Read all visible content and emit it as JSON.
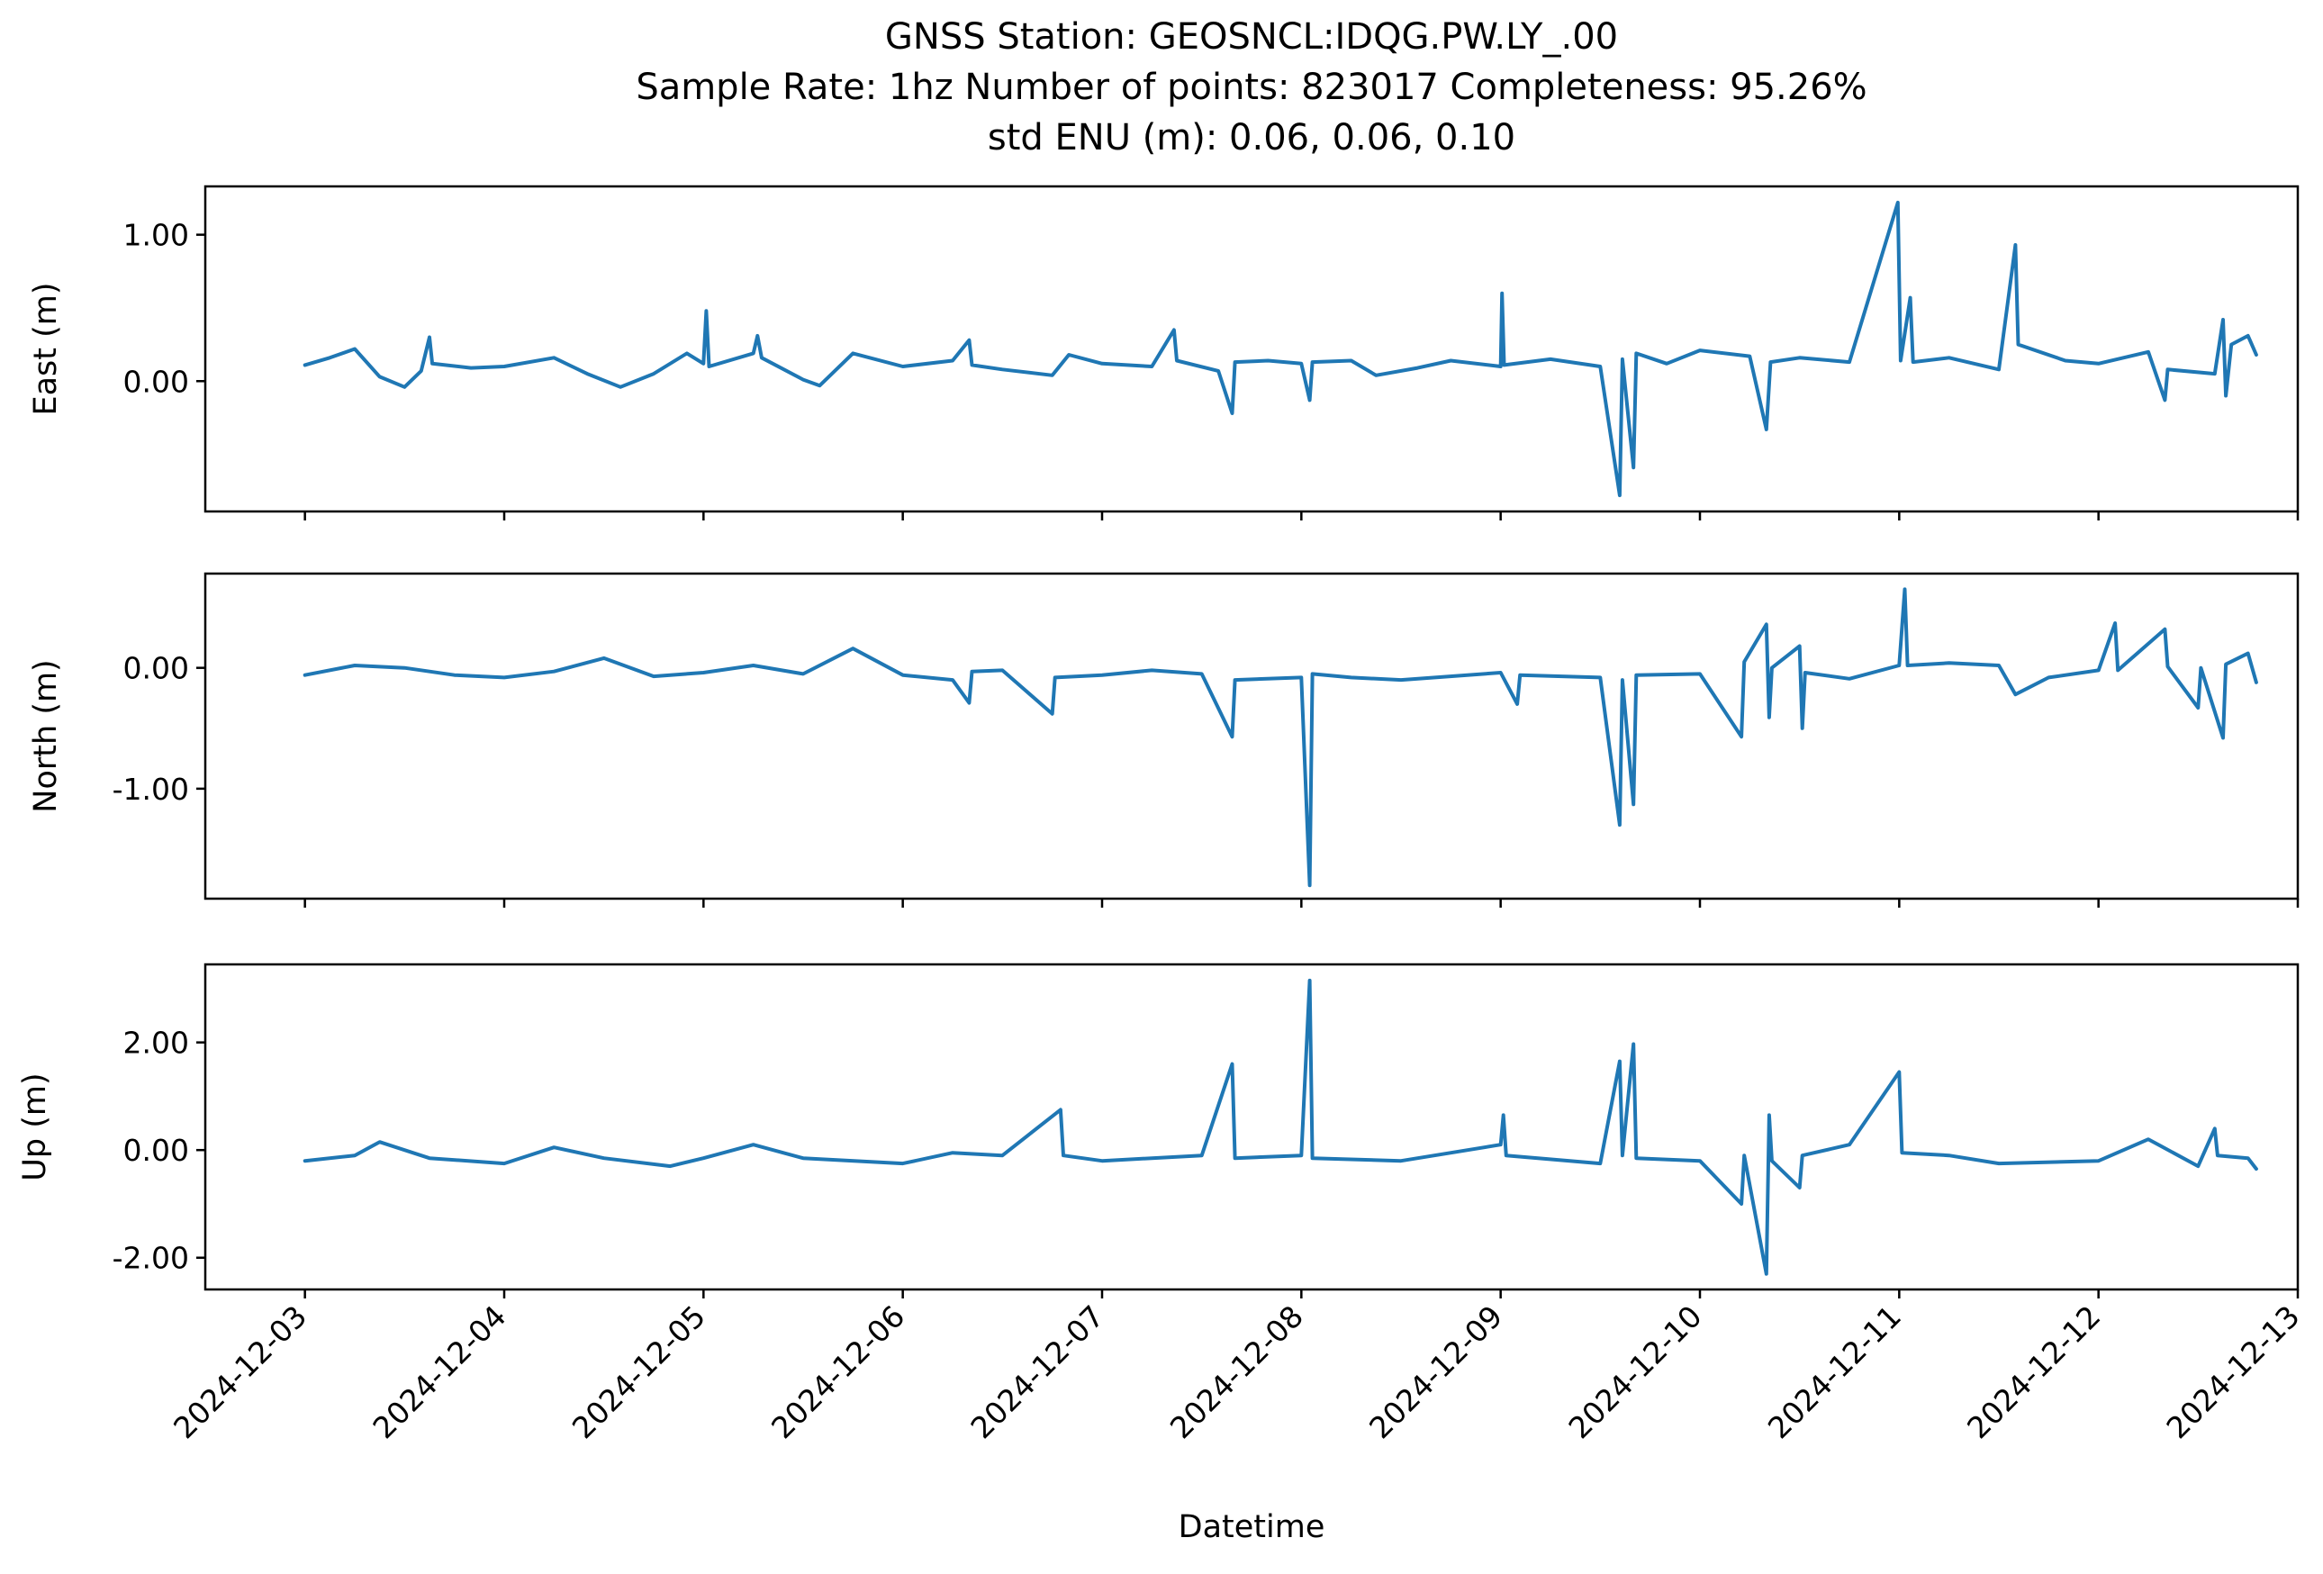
{
  "chart_data": {
    "type": "line",
    "title_lines": [
      "GNSS Station: GEOSNCL:IDQG.PW.LY_.00",
      "Sample Rate: 1hz   Number of points: 823017    Completeness:  95.26%",
      "std ENU (m):  0.06, 0.06, 0.10"
    ],
    "xlabel": "Datetime",
    "x_axis": {
      "type": "datetime",
      "range": [
        "2024-12-02T12:00",
        "2024-12-13T00:00"
      ],
      "ticks": [
        "2024-12-03",
        "2024-12-04",
        "2024-12-05",
        "2024-12-06",
        "2024-12-07",
        "2024-12-08",
        "2024-12-09",
        "2024-12-10",
        "2024-12-11",
        "2024-12-12",
        "2024-12-13"
      ]
    },
    "series_color": "#1f77b4",
    "grid": false,
    "panels": [
      {
        "key": "east",
        "ylabel": "East (m)",
        "ylim": [
          -0.89,
          1.33
        ],
        "yticks": [
          {
            "v": 0.0,
            "label": "0.00"
          },
          {
            "v": 1.0,
            "label": "1.00"
          }
        ],
        "points": [
          [
            "2024-12-03T00:00",
            0.11
          ],
          [
            "2024-12-03T03:00",
            0.16
          ],
          [
            "2024-12-03T06:00",
            0.22
          ],
          [
            "2024-12-03T09:00",
            0.03
          ],
          [
            "2024-12-03T12:00",
            -0.04
          ],
          [
            "2024-12-03T14:00",
            0.07
          ],
          [
            "2024-12-03T15:00",
            0.3
          ],
          [
            "2024-12-03T15:20",
            0.12
          ],
          [
            "2024-12-03T20:00",
            0.09
          ],
          [
            "2024-12-04T00:00",
            0.1
          ],
          [
            "2024-12-04T06:00",
            0.16
          ],
          [
            "2024-12-04T10:00",
            0.05
          ],
          [
            "2024-12-04T14:00",
            -0.04
          ],
          [
            "2024-12-04T18:00",
            0.05
          ],
          [
            "2024-12-04T22:00",
            0.19
          ],
          [
            "2024-12-05T00:00",
            0.12
          ],
          [
            "2024-12-05T00:20",
            0.48
          ],
          [
            "2024-12-05T00:40",
            0.1
          ],
          [
            "2024-12-05T06:00",
            0.19
          ],
          [
            "2024-12-05T06:30",
            0.31
          ],
          [
            "2024-12-05T07:00",
            0.16
          ],
          [
            "2024-12-05T12:00",
            0.01
          ],
          [
            "2024-12-05T14:00",
            -0.03
          ],
          [
            "2024-12-05T18:00",
            0.19
          ],
          [
            "2024-12-06T00:00",
            0.1
          ],
          [
            "2024-12-06T06:00",
            0.14
          ],
          [
            "2024-12-06T08:00",
            0.28
          ],
          [
            "2024-12-06T08:20",
            0.11
          ],
          [
            "2024-12-06T12:00",
            0.08
          ],
          [
            "2024-12-06T18:00",
            0.04
          ],
          [
            "2024-12-06T20:00",
            0.18
          ],
          [
            "2024-12-07T00:00",
            0.12
          ],
          [
            "2024-12-07T06:00",
            0.1
          ],
          [
            "2024-12-07T08:40",
            0.35
          ],
          [
            "2024-12-07T09:00",
            0.14
          ],
          [
            "2024-12-07T14:00",
            0.07
          ],
          [
            "2024-12-07T15:40",
            -0.22
          ],
          [
            "2024-12-07T16:00",
            0.13
          ],
          [
            "2024-12-07T20:00",
            0.14
          ],
          [
            "2024-12-08T00:00",
            0.12
          ],
          [
            "2024-12-08T01:00",
            -0.13
          ],
          [
            "2024-12-08T01:20",
            0.13
          ],
          [
            "2024-12-08T06:00",
            0.14
          ],
          [
            "2024-12-08T09:00",
            0.04
          ],
          [
            "2024-12-08T14:00",
            0.09
          ],
          [
            "2024-12-08T18:00",
            0.14
          ],
          [
            "2024-12-09T00:00",
            0.1
          ],
          [
            "2024-12-09T00:10",
            0.6
          ],
          [
            "2024-12-09T00:25",
            0.11
          ],
          [
            "2024-12-09T06:00",
            0.15
          ],
          [
            "2024-12-09T12:00",
            0.1
          ],
          [
            "2024-12-09T14:20",
            -0.78
          ],
          [
            "2024-12-09T14:40",
            0.15
          ],
          [
            "2024-12-09T16:00",
            -0.59
          ],
          [
            "2024-12-09T16:20",
            0.19
          ],
          [
            "2024-12-09T20:00",
            0.12
          ],
          [
            "2024-12-10T00:00",
            0.21
          ],
          [
            "2024-12-10T06:00",
            0.17
          ],
          [
            "2024-12-10T08:00",
            -0.33
          ],
          [
            "2024-12-10T08:30",
            0.13
          ],
          [
            "2024-12-10T12:00",
            0.16
          ],
          [
            "2024-12-10T18:00",
            0.13
          ],
          [
            "2024-12-10T23:50",
            1.22
          ],
          [
            "2024-12-11T00:10",
            0.14
          ],
          [
            "2024-12-11T01:20",
            0.57
          ],
          [
            "2024-12-11T01:40",
            0.13
          ],
          [
            "2024-12-11T06:00",
            0.16
          ],
          [
            "2024-12-11T12:00",
            0.08
          ],
          [
            "2024-12-11T14:00",
            0.93
          ],
          [
            "2024-12-11T14:20",
            0.25
          ],
          [
            "2024-12-11T20:00",
            0.14
          ],
          [
            "2024-12-12T00:00",
            0.12
          ],
          [
            "2024-12-12T06:00",
            0.2
          ],
          [
            "2024-12-12T08:00",
            -0.13
          ],
          [
            "2024-12-12T08:20",
            0.08
          ],
          [
            "2024-12-12T14:00",
            0.05
          ],
          [
            "2024-12-12T15:00",
            0.42
          ],
          [
            "2024-12-12T15:20",
            -0.1
          ],
          [
            "2024-12-12T16:00",
            0.25
          ],
          [
            "2024-12-12T18:00",
            0.31
          ],
          [
            "2024-12-12T19:00",
            0.18
          ]
        ]
      },
      {
        "key": "north",
        "ylabel": "North (m)",
        "ylim": [
          -1.91,
          0.78
        ],
        "yticks": [
          {
            "v": -1.0,
            "label": "-1.00"
          },
          {
            "v": 0.0,
            "label": "0.00"
          }
        ],
        "points": [
          [
            "2024-12-03T00:00",
            -0.06
          ],
          [
            "2024-12-03T06:00",
            0.02
          ],
          [
            "2024-12-03T12:00",
            0.0
          ],
          [
            "2024-12-03T18:00",
            -0.06
          ],
          [
            "2024-12-04T00:00",
            -0.08
          ],
          [
            "2024-12-04T06:00",
            -0.03
          ],
          [
            "2024-12-04T12:00",
            0.08
          ],
          [
            "2024-12-04T18:00",
            -0.07
          ],
          [
            "2024-12-05T00:00",
            -0.04
          ],
          [
            "2024-12-05T06:00",
            0.02
          ],
          [
            "2024-12-05T12:00",
            -0.05
          ],
          [
            "2024-12-05T18:00",
            0.16
          ],
          [
            "2024-12-06T00:00",
            -0.06
          ],
          [
            "2024-12-06T06:00",
            -0.1
          ],
          [
            "2024-12-06T08:00",
            -0.29
          ],
          [
            "2024-12-06T08:20",
            -0.03
          ],
          [
            "2024-12-06T12:00",
            -0.02
          ],
          [
            "2024-12-06T18:00",
            -0.38
          ],
          [
            "2024-12-06T18:20",
            -0.08
          ],
          [
            "2024-12-07T00:00",
            -0.06
          ],
          [
            "2024-12-07T06:00",
            -0.02
          ],
          [
            "2024-12-07T12:00",
            -0.05
          ],
          [
            "2024-12-07T15:40",
            -0.57
          ],
          [
            "2024-12-07T16:00",
            -0.1
          ],
          [
            "2024-12-08T00:00",
            -0.08
          ],
          [
            "2024-12-08T01:00",
            -1.8
          ],
          [
            "2024-12-08T01:20",
            -0.05
          ],
          [
            "2024-12-08T06:00",
            -0.08
          ],
          [
            "2024-12-08T12:00",
            -0.1
          ],
          [
            "2024-12-09T00:00",
            -0.04
          ],
          [
            "2024-12-09T02:00",
            -0.3
          ],
          [
            "2024-12-09T02:20",
            -0.06
          ],
          [
            "2024-12-09T12:00",
            -0.08
          ],
          [
            "2024-12-09T14:20",
            -1.3
          ],
          [
            "2024-12-09T14:40",
            -0.1
          ],
          [
            "2024-12-09T16:00",
            -1.13
          ],
          [
            "2024-12-09T16:20",
            -0.06
          ],
          [
            "2024-12-10T00:00",
            -0.05
          ],
          [
            "2024-12-10T05:00",
            -0.57
          ],
          [
            "2024-12-10T05:20",
            0.05
          ],
          [
            "2024-12-10T08:00",
            0.36
          ],
          [
            "2024-12-10T08:20",
            -0.41
          ],
          [
            "2024-12-10T08:40",
            0.0
          ],
          [
            "2024-12-10T12:00",
            0.18
          ],
          [
            "2024-12-10T12:20",
            -0.5
          ],
          [
            "2024-12-10T12:40",
            -0.04
          ],
          [
            "2024-12-10T18:00",
            -0.09
          ],
          [
            "2024-12-11T00:00",
            0.02
          ],
          [
            "2024-12-11T00:40",
            0.65
          ],
          [
            "2024-12-11T01:00",
            0.02
          ],
          [
            "2024-12-11T06:00",
            0.04
          ],
          [
            "2024-12-11T12:00",
            0.02
          ],
          [
            "2024-12-11T14:00",
            -0.22
          ],
          [
            "2024-12-11T18:00",
            -0.08
          ],
          [
            "2024-12-12T00:00",
            -0.02
          ],
          [
            "2024-12-12T02:00",
            0.37
          ],
          [
            "2024-12-12T02:20",
            -0.02
          ],
          [
            "2024-12-12T08:00",
            0.32
          ],
          [
            "2024-12-12T08:20",
            0.01
          ],
          [
            "2024-12-12T12:00",
            -0.33
          ],
          [
            "2024-12-12T12:20",
            0.0
          ],
          [
            "2024-12-12T15:00",
            -0.58
          ],
          [
            "2024-12-12T15:20",
            0.03
          ],
          [
            "2024-12-12T18:00",
            0.12
          ],
          [
            "2024-12-12T19:00",
            -0.12
          ]
        ]
      },
      {
        "key": "up",
        "ylabel": "Up (m)",
        "ylim": [
          -2.59,
          3.45
        ],
        "yticks": [
          {
            "v": -2.0,
            "label": "-2.00"
          },
          {
            "v": 0.0,
            "label": "0.00"
          },
          {
            "v": 2.0,
            "label": "2.00"
          }
        ],
        "points": [
          [
            "2024-12-03T00:00",
            -0.2
          ],
          [
            "2024-12-03T06:00",
            -0.1
          ],
          [
            "2024-12-03T09:00",
            0.15
          ],
          [
            "2024-12-03T15:00",
            -0.15
          ],
          [
            "2024-12-04T00:00",
            -0.25
          ],
          [
            "2024-12-04T06:00",
            0.05
          ],
          [
            "2024-12-04T12:00",
            -0.15
          ],
          [
            "2024-12-04T20:00",
            -0.3
          ],
          [
            "2024-12-05T00:00",
            -0.15
          ],
          [
            "2024-12-05T06:00",
            0.1
          ],
          [
            "2024-12-05T12:00",
            -0.15
          ],
          [
            "2024-12-06T00:00",
            -0.25
          ],
          [
            "2024-12-06T06:00",
            -0.05
          ],
          [
            "2024-12-06T12:00",
            -0.1
          ],
          [
            "2024-12-06T19:00",
            0.75
          ],
          [
            "2024-12-06T19:20",
            -0.1
          ],
          [
            "2024-12-07T00:00",
            -0.2
          ],
          [
            "2024-12-07T12:00",
            -0.1
          ],
          [
            "2024-12-07T15:40",
            1.6
          ],
          [
            "2024-12-07T16:00",
            -0.15
          ],
          [
            "2024-12-08T00:00",
            -0.1
          ],
          [
            "2024-12-08T01:00",
            3.15
          ],
          [
            "2024-12-08T01:20",
            -0.15
          ],
          [
            "2024-12-08T12:00",
            -0.2
          ],
          [
            "2024-12-09T00:00",
            0.1
          ],
          [
            "2024-12-09T00:20",
            0.65
          ],
          [
            "2024-12-09T00:40",
            -0.1
          ],
          [
            "2024-12-09T12:00",
            -0.25
          ],
          [
            "2024-12-09T14:20",
            1.65
          ],
          [
            "2024-12-09T14:40",
            -0.1
          ],
          [
            "2024-12-09T16:00",
            1.97
          ],
          [
            "2024-12-09T16:20",
            -0.15
          ],
          [
            "2024-12-10T00:00",
            -0.2
          ],
          [
            "2024-12-10T05:00",
            -1.0
          ],
          [
            "2024-12-10T05:20",
            -0.1
          ],
          [
            "2024-12-10T08:00",
            -2.3
          ],
          [
            "2024-12-10T08:20",
            0.65
          ],
          [
            "2024-12-10T08:40",
            -0.2
          ],
          [
            "2024-12-10T12:00",
            -0.7
          ],
          [
            "2024-12-10T12:20",
            -0.1
          ],
          [
            "2024-12-10T18:00",
            0.1
          ],
          [
            "2024-12-11T00:00",
            1.45
          ],
          [
            "2024-12-11T00:20",
            -0.05
          ],
          [
            "2024-12-11T06:00",
            -0.1
          ],
          [
            "2024-12-11T12:00",
            -0.25
          ],
          [
            "2024-12-12T00:00",
            -0.2
          ],
          [
            "2024-12-12T06:00",
            0.2
          ],
          [
            "2024-12-12T12:00",
            -0.3
          ],
          [
            "2024-12-12T14:00",
            0.4
          ],
          [
            "2024-12-12T14:20",
            -0.1
          ],
          [
            "2024-12-12T18:00",
            -0.15
          ],
          [
            "2024-12-12T19:00",
            -0.35
          ]
        ]
      }
    ]
  }
}
